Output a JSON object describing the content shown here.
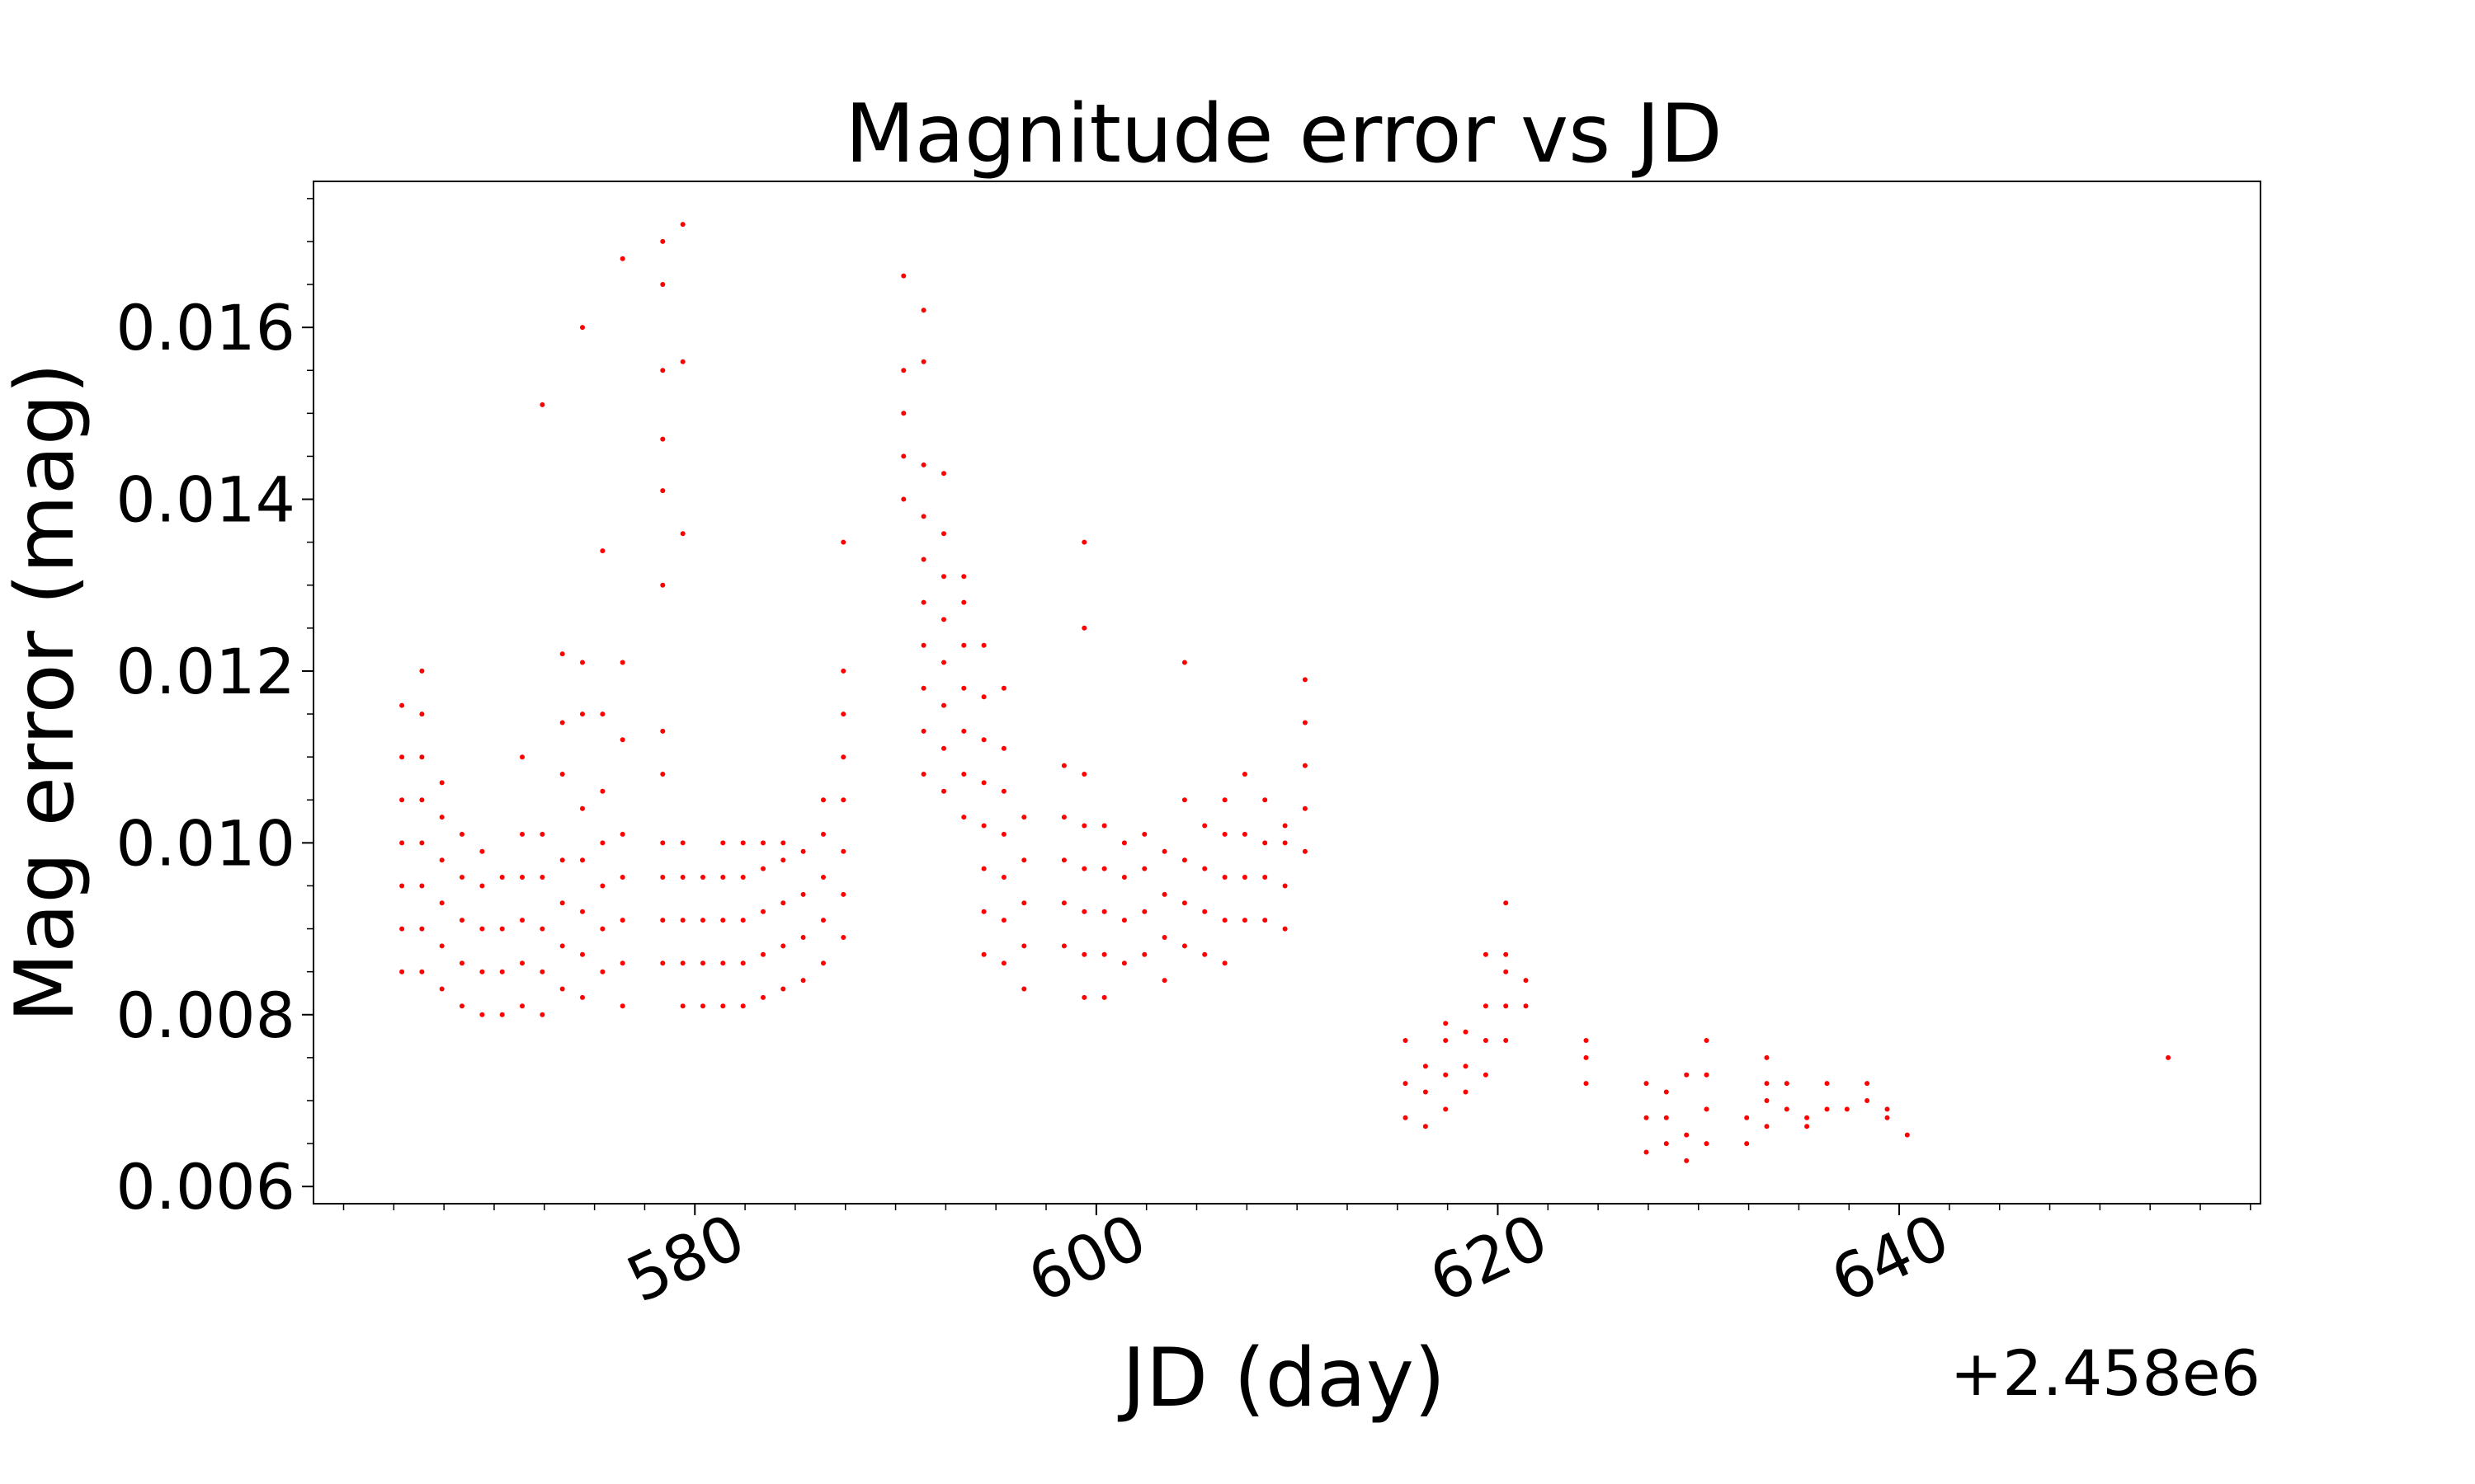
{
  "chart_data": {
    "type": "scatter",
    "title": "Magnitude error vs JD",
    "xlabel": "JD (day)",
    "ylabel": "Mag error (mag)",
    "x_offset_label": "+2.458e6",
    "xlim": [
      2458561.0,
      2458658.0
    ],
    "ylim": [
      0.0058,
      0.0177
    ],
    "x_ticks": [
      2458580,
      2458600,
      2458620,
      2458640
    ],
    "x_tick_labels": [
      "580",
      "600",
      "620",
      "640"
    ],
    "y_ticks": [
      0.006,
      0.008,
      0.01,
      0.012,
      0.014,
      0.016
    ],
    "y_tick_labels": [
      "0.006",
      "0.008",
      "0.010",
      "0.012",
      "0.014",
      "0.016"
    ],
    "grid": false,
    "color": "#ff0000",
    "points": [
      [
        2458565.4,
        0.0085
      ],
      [
        2458565.4,
        0.009
      ],
      [
        2458565.4,
        0.0095
      ],
      [
        2458565.4,
        0.01
      ],
      [
        2458565.4,
        0.0105
      ],
      [
        2458565.4,
        0.011
      ],
      [
        2458565.4,
        0.0116
      ],
      [
        2458566.4,
        0.0085
      ],
      [
        2458566.4,
        0.009
      ],
      [
        2458566.4,
        0.0095
      ],
      [
        2458566.4,
        0.01
      ],
      [
        2458566.4,
        0.0105
      ],
      [
        2458566.4,
        0.011
      ],
      [
        2458566.4,
        0.0115
      ],
      [
        2458566.4,
        0.012
      ],
      [
        2458567.4,
        0.0083
      ],
      [
        2458567.4,
        0.0088
      ],
      [
        2458567.4,
        0.0093
      ],
      [
        2458567.4,
        0.0098
      ],
      [
        2458567.4,
        0.0103
      ],
      [
        2458567.4,
        0.0107
      ],
      [
        2458568.4,
        0.0081
      ],
      [
        2458568.4,
        0.0086
      ],
      [
        2458568.4,
        0.0091
      ],
      [
        2458568.4,
        0.0096
      ],
      [
        2458568.4,
        0.0101
      ],
      [
        2458569.4,
        0.008
      ],
      [
        2458569.4,
        0.0085
      ],
      [
        2458569.4,
        0.009
      ],
      [
        2458569.4,
        0.0095
      ],
      [
        2458569.4,
        0.0099
      ],
      [
        2458570.4,
        0.008
      ],
      [
        2458570.4,
        0.0085
      ],
      [
        2458570.4,
        0.009
      ],
      [
        2458570.4,
        0.0096
      ],
      [
        2458571.4,
        0.0081
      ],
      [
        2458571.4,
        0.0086
      ],
      [
        2458571.4,
        0.0091
      ],
      [
        2458571.4,
        0.0096
      ],
      [
        2458571.4,
        0.0101
      ],
      [
        2458571.4,
        0.011
      ],
      [
        2458572.4,
        0.008
      ],
      [
        2458572.4,
        0.0085
      ],
      [
        2458572.4,
        0.009
      ],
      [
        2458572.4,
        0.0096
      ],
      [
        2458572.4,
        0.0101
      ],
      [
        2458572.4,
        0.0151
      ],
      [
        2458573.4,
        0.0083
      ],
      [
        2458573.4,
        0.0088
      ],
      [
        2458573.4,
        0.0093
      ],
      [
        2458573.4,
        0.0098
      ],
      [
        2458573.4,
        0.0108
      ],
      [
        2458573.4,
        0.0114
      ],
      [
        2458573.4,
        0.0122
      ],
      [
        2458574.4,
        0.0082
      ],
      [
        2458574.4,
        0.0087
      ],
      [
        2458574.4,
        0.0092
      ],
      [
        2458574.4,
        0.0098
      ],
      [
        2458574.4,
        0.0104
      ],
      [
        2458574.4,
        0.0115
      ],
      [
        2458574.4,
        0.0121
      ],
      [
        2458574.4,
        0.016
      ],
      [
        2458575.4,
        0.0085
      ],
      [
        2458575.4,
        0.009
      ],
      [
        2458575.4,
        0.0095
      ],
      [
        2458575.4,
        0.01
      ],
      [
        2458575.4,
        0.0106
      ],
      [
        2458575.4,
        0.0115
      ],
      [
        2458575.4,
        0.0134
      ],
      [
        2458576.4,
        0.0081
      ],
      [
        2458576.4,
        0.0086
      ],
      [
        2458576.4,
        0.0091
      ],
      [
        2458576.4,
        0.0096
      ],
      [
        2458576.4,
        0.0101
      ],
      [
        2458576.4,
        0.0112
      ],
      [
        2458576.4,
        0.0121
      ],
      [
        2458576.4,
        0.0168
      ],
      [
        2458578.4,
        0.0086
      ],
      [
        2458578.4,
        0.0091
      ],
      [
        2458578.4,
        0.0096
      ],
      [
        2458578.4,
        0.01
      ],
      [
        2458578.4,
        0.0108
      ],
      [
        2458578.4,
        0.0113
      ],
      [
        2458578.4,
        0.013
      ],
      [
        2458578.4,
        0.0141
      ],
      [
        2458578.4,
        0.0147
      ],
      [
        2458578.4,
        0.0155
      ],
      [
        2458578.4,
        0.0165
      ],
      [
        2458578.4,
        0.017
      ],
      [
        2458579.4,
        0.0081
      ],
      [
        2458579.4,
        0.0086
      ],
      [
        2458579.4,
        0.0091
      ],
      [
        2458579.4,
        0.0096
      ],
      [
        2458579.4,
        0.01
      ],
      [
        2458579.4,
        0.0136
      ],
      [
        2458579.4,
        0.0156
      ],
      [
        2458579.4,
        0.0172
      ],
      [
        2458580.4,
        0.0081
      ],
      [
        2458580.4,
        0.0086
      ],
      [
        2458580.4,
        0.0091
      ],
      [
        2458580.4,
        0.0096
      ],
      [
        2458581.4,
        0.0081
      ],
      [
        2458581.4,
        0.0086
      ],
      [
        2458581.4,
        0.0091
      ],
      [
        2458581.4,
        0.0096
      ],
      [
        2458581.4,
        0.01
      ],
      [
        2458582.4,
        0.0081
      ],
      [
        2458582.4,
        0.0086
      ],
      [
        2458582.4,
        0.0091
      ],
      [
        2458582.4,
        0.0096
      ],
      [
        2458582.4,
        0.01
      ],
      [
        2458583.4,
        0.0082
      ],
      [
        2458583.4,
        0.0087
      ],
      [
        2458583.4,
        0.0092
      ],
      [
        2458583.4,
        0.0097
      ],
      [
        2458583.4,
        0.01
      ],
      [
        2458584.4,
        0.0083
      ],
      [
        2458584.4,
        0.0088
      ],
      [
        2458584.4,
        0.0093
      ],
      [
        2458584.4,
        0.0098
      ],
      [
        2458584.4,
        0.01
      ],
      [
        2458585.4,
        0.0084
      ],
      [
        2458585.4,
        0.0089
      ],
      [
        2458585.4,
        0.0094
      ],
      [
        2458585.4,
        0.0099
      ],
      [
        2458586.4,
        0.0086
      ],
      [
        2458586.4,
        0.0091
      ],
      [
        2458586.4,
        0.0096
      ],
      [
        2458586.4,
        0.0101
      ],
      [
        2458586.4,
        0.0105
      ],
      [
        2458587.4,
        0.0089
      ],
      [
        2458587.4,
        0.0094
      ],
      [
        2458587.4,
        0.0099
      ],
      [
        2458587.4,
        0.0105
      ],
      [
        2458587.4,
        0.011
      ],
      [
        2458587.4,
        0.0115
      ],
      [
        2458587.4,
        0.012
      ],
      [
        2458587.4,
        0.0135
      ],
      [
        2458590.4,
        0.014
      ],
      [
        2458590.4,
        0.0145
      ],
      [
        2458590.4,
        0.015
      ],
      [
        2458590.4,
        0.0155
      ],
      [
        2458590.4,
        0.0166
      ],
      [
        2458591.4,
        0.0108
      ],
      [
        2458591.4,
        0.0113
      ],
      [
        2458591.4,
        0.0118
      ],
      [
        2458591.4,
        0.0123
      ],
      [
        2458591.4,
        0.0128
      ],
      [
        2458591.4,
        0.0133
      ],
      [
        2458591.4,
        0.0138
      ],
      [
        2458591.4,
        0.0144
      ],
      [
        2458591.4,
        0.0156
      ],
      [
        2458591.4,
        0.0162
      ],
      [
        2458592.4,
        0.0106
      ],
      [
        2458592.4,
        0.0111
      ],
      [
        2458592.4,
        0.0116
      ],
      [
        2458592.4,
        0.0121
      ],
      [
        2458592.4,
        0.0126
      ],
      [
        2458592.4,
        0.0131
      ],
      [
        2458592.4,
        0.0136
      ],
      [
        2458592.4,
        0.0143
      ],
      [
        2458593.4,
        0.0103
      ],
      [
        2458593.4,
        0.0108
      ],
      [
        2458593.4,
        0.0113
      ],
      [
        2458593.4,
        0.0118
      ],
      [
        2458593.4,
        0.0123
      ],
      [
        2458593.4,
        0.0128
      ],
      [
        2458593.4,
        0.0131
      ],
      [
        2458594.4,
        0.0087
      ],
      [
        2458594.4,
        0.0092
      ],
      [
        2458594.4,
        0.0097
      ],
      [
        2458594.4,
        0.0102
      ],
      [
        2458594.4,
        0.0107
      ],
      [
        2458594.4,
        0.0112
      ],
      [
        2458594.4,
        0.0117
      ],
      [
        2458594.4,
        0.0123
      ],
      [
        2458595.4,
        0.0086
      ],
      [
        2458595.4,
        0.0091
      ],
      [
        2458595.4,
        0.0096
      ],
      [
        2458595.4,
        0.0101
      ],
      [
        2458595.4,
        0.0106
      ],
      [
        2458595.4,
        0.0111
      ],
      [
        2458595.4,
        0.0118
      ],
      [
        2458596.4,
        0.0083
      ],
      [
        2458596.4,
        0.0088
      ],
      [
        2458596.4,
        0.0093
      ],
      [
        2458596.4,
        0.0098
      ],
      [
        2458596.4,
        0.0103
      ],
      [
        2458598.4,
        0.0088
      ],
      [
        2458598.4,
        0.0093
      ],
      [
        2458598.4,
        0.0098
      ],
      [
        2458598.4,
        0.0103
      ],
      [
        2458598.4,
        0.0109
      ],
      [
        2458599.4,
        0.0082
      ],
      [
        2458599.4,
        0.0087
      ],
      [
        2458599.4,
        0.0092
      ],
      [
        2458599.4,
        0.0097
      ],
      [
        2458599.4,
        0.0102
      ],
      [
        2458599.4,
        0.0108
      ],
      [
        2458599.4,
        0.0125
      ],
      [
        2458599.4,
        0.0135
      ],
      [
        2458600.4,
        0.0082
      ],
      [
        2458600.4,
        0.0087
      ],
      [
        2458600.4,
        0.0092
      ],
      [
        2458600.4,
        0.0097
      ],
      [
        2458600.4,
        0.0102
      ],
      [
        2458601.4,
        0.0086
      ],
      [
        2458601.4,
        0.0091
      ],
      [
        2458601.4,
        0.0096
      ],
      [
        2458601.4,
        0.01
      ],
      [
        2458602.4,
        0.0087
      ],
      [
        2458602.4,
        0.0092
      ],
      [
        2458602.4,
        0.0097
      ],
      [
        2458602.4,
        0.0101
      ],
      [
        2458603.4,
        0.0084
      ],
      [
        2458603.4,
        0.0089
      ],
      [
        2458603.4,
        0.0094
      ],
      [
        2458603.4,
        0.0099
      ],
      [
        2458604.4,
        0.0088
      ],
      [
        2458604.4,
        0.0093
      ],
      [
        2458604.4,
        0.0098
      ],
      [
        2458604.4,
        0.0105
      ],
      [
        2458604.4,
        0.0121
      ],
      [
        2458605.4,
        0.0087
      ],
      [
        2458605.4,
        0.0092
      ],
      [
        2458605.4,
        0.0097
      ],
      [
        2458605.4,
        0.0102
      ],
      [
        2458606.4,
        0.0086
      ],
      [
        2458606.4,
        0.0091
      ],
      [
        2458606.4,
        0.0096
      ],
      [
        2458606.4,
        0.0101
      ],
      [
        2458606.4,
        0.0105
      ],
      [
        2458607.4,
        0.0091
      ],
      [
        2458607.4,
        0.0096
      ],
      [
        2458607.4,
        0.0101
      ],
      [
        2458607.4,
        0.0108
      ],
      [
        2458608.4,
        0.0091
      ],
      [
        2458608.4,
        0.0096
      ],
      [
        2458608.4,
        0.01
      ],
      [
        2458608.4,
        0.0105
      ],
      [
        2458609.4,
        0.009
      ],
      [
        2458609.4,
        0.0095
      ],
      [
        2458609.4,
        0.01
      ],
      [
        2458609.4,
        0.0102
      ],
      [
        2458610.4,
        0.0099
      ],
      [
        2458610.4,
        0.0104
      ],
      [
        2458610.4,
        0.0109
      ],
      [
        2458610.4,
        0.0114
      ],
      [
        2458610.4,
        0.0119
      ],
      [
        2458615.4,
        0.0068
      ],
      [
        2458615.4,
        0.0072
      ],
      [
        2458615.4,
        0.0077
      ],
      [
        2458616.4,
        0.0067
      ],
      [
        2458616.4,
        0.0071
      ],
      [
        2458616.4,
        0.0074
      ],
      [
        2458617.4,
        0.0069
      ],
      [
        2458617.4,
        0.0073
      ],
      [
        2458617.4,
        0.0077
      ],
      [
        2458617.4,
        0.0079
      ],
      [
        2458618.4,
        0.0071
      ],
      [
        2458618.4,
        0.0074
      ],
      [
        2458618.4,
        0.0078
      ],
      [
        2458619.4,
        0.0073
      ],
      [
        2458619.4,
        0.0077
      ],
      [
        2458619.4,
        0.0081
      ],
      [
        2458619.4,
        0.0087
      ],
      [
        2458620.4,
        0.0077
      ],
      [
        2458620.4,
        0.0081
      ],
      [
        2458620.4,
        0.0085
      ],
      [
        2458620.4,
        0.0087
      ],
      [
        2458620.4,
        0.0093
      ],
      [
        2458621.4,
        0.0081
      ],
      [
        2458621.4,
        0.0084
      ],
      [
        2458624.4,
        0.0072
      ],
      [
        2458624.4,
        0.0075
      ],
      [
        2458624.4,
        0.0077
      ],
      [
        2458627.4,
        0.0064
      ],
      [
        2458627.4,
        0.0068
      ],
      [
        2458627.4,
        0.0072
      ],
      [
        2458628.4,
        0.0065
      ],
      [
        2458628.4,
        0.0068
      ],
      [
        2458628.4,
        0.0071
      ],
      [
        2458629.4,
        0.0063
      ],
      [
        2458629.4,
        0.0066
      ],
      [
        2458629.4,
        0.0073
      ],
      [
        2458630.4,
        0.0065
      ],
      [
        2458630.4,
        0.0069
      ],
      [
        2458630.4,
        0.0073
      ],
      [
        2458630.4,
        0.0077
      ],
      [
        2458632.4,
        0.0065
      ],
      [
        2458632.4,
        0.0068
      ],
      [
        2458633.4,
        0.0067
      ],
      [
        2458633.4,
        0.007
      ],
      [
        2458633.4,
        0.0072
      ],
      [
        2458633.4,
        0.0075
      ],
      [
        2458634.4,
        0.0069
      ],
      [
        2458634.4,
        0.0072
      ],
      [
        2458635.4,
        0.0067
      ],
      [
        2458635.4,
        0.0068
      ],
      [
        2458636.4,
        0.0069
      ],
      [
        2458636.4,
        0.0072
      ],
      [
        2458637.4,
        0.0069
      ],
      [
        2458638.4,
        0.007
      ],
      [
        2458638.4,
        0.0072
      ],
      [
        2458639.4,
        0.0068
      ],
      [
        2458639.4,
        0.0069
      ],
      [
        2458640.4,
        0.0066
      ],
      [
        2458653.4,
        0.0075
      ]
    ]
  }
}
